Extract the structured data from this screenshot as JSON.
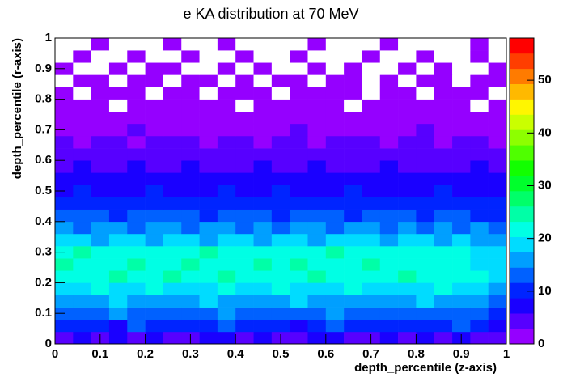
{
  "chart_data": {
    "type": "heatmap",
    "title": "e KA distribution at 70 MeV",
    "x_label": "depth_percentile (z-axis)",
    "y_label": "depth_percentile (r-axis)",
    "xlim": [
      0,
      1
    ],
    "ylim": [
      0,
      1
    ],
    "zlim": [
      0,
      58
    ],
    "xticks": [
      0,
      0.1,
      0.2,
      0.3,
      0.4,
      0.5,
      0.6,
      0.7,
      0.8,
      0.9,
      1
    ],
    "yticks": [
      0,
      0.1,
      0.2,
      0.3,
      0.4,
      0.5,
      0.6,
      0.7,
      0.8,
      0.9,
      1
    ],
    "zticks": [
      0,
      10,
      20,
      30,
      40,
      50
    ],
    "values": [
      [
        5,
        6,
        4,
        7,
        5,
        6,
        5,
        4,
        6,
        7,
        5,
        6,
        4,
        5,
        6,
        7,
        5,
        4,
        6,
        5,
        7,
        5,
        6,
        4,
        5
      ],
      [
        9,
        11,
        10,
        8,
        12,
        10,
        9,
        11,
        10,
        12,
        9,
        10,
        11,
        8,
        10,
        12,
        9,
        11,
        10,
        9,
        11,
        10,
        12,
        9,
        8
      ],
      [
        13,
        12,
        14,
        15,
        12,
        13,
        14,
        12,
        13,
        15,
        14,
        12,
        13,
        14,
        12,
        15,
        13,
        12,
        14,
        13,
        12,
        14,
        13,
        12,
        11
      ],
      [
        17,
        16,
        15,
        18,
        16,
        17,
        15,
        16,
        18,
        17,
        16,
        15,
        17,
        18,
        16,
        17,
        15,
        16,
        17,
        16,
        18,
        15,
        16,
        17,
        14
      ],
      [
        20,
        19,
        21,
        18,
        20,
        22,
        19,
        18,
        20,
        21,
        19,
        20,
        22,
        19,
        18,
        20,
        21,
        19,
        18,
        20,
        19,
        21,
        18,
        19,
        17
      ],
      [
        23,
        22,
        21,
        24,
        22,
        23,
        25,
        21,
        22,
        24,
        23,
        21,
        22,
        23,
        24,
        22,
        21,
        23,
        22,
        24,
        21,
        22,
        23,
        21,
        19
      ],
      [
        24,
        22,
        23,
        21,
        25,
        22,
        23,
        24,
        22,
        21,
        23,
        25,
        22,
        24,
        23,
        22,
        21,
        24,
        23,
        22,
        21,
        23,
        22,
        20,
        19
      ],
      [
        23,
        24,
        22,
        21,
        22,
        23,
        21,
        22,
        24,
        22,
        21,
        23,
        22,
        21,
        23,
        24,
        22,
        21,
        22,
        23,
        21,
        22,
        21,
        20,
        18
      ],
      [
        18,
        19,
        17,
        18,
        20,
        17,
        18,
        19,
        17,
        18,
        19,
        17,
        18,
        20,
        17,
        18,
        19,
        18,
        17,
        18,
        19,
        17,
        18,
        17,
        15
      ],
      [
        15,
        14,
        16,
        15,
        14,
        15,
        16,
        14,
        15,
        16,
        14,
        15,
        14,
        16,
        15,
        14,
        15,
        16,
        14,
        15,
        14,
        15,
        14,
        15,
        13
      ],
      [
        12,
        13,
        12,
        11,
        13,
        12,
        12,
        13,
        11,
        12,
        13,
        12,
        11,
        12,
        13,
        12,
        11,
        12,
        13,
        12,
        11,
        12,
        12,
        11,
        10
      ],
      [
        10,
        9,
        11,
        10,
        9,
        10,
        11,
        10,
        9,
        10,
        11,
        9,
        10,
        10,
        9,
        11,
        10,
        9,
        10,
        11,
        9,
        10,
        9,
        10,
        9
      ],
      [
        8,
        9,
        8,
        7,
        8,
        9,
        8,
        8,
        7,
        9,
        8,
        8,
        9,
        7,
        8,
        8,
        9,
        8,
        7,
        8,
        8,
        9,
        8,
        7,
        7
      ],
      [
        7,
        6,
        7,
        8,
        6,
        7,
        7,
        6,
        7,
        8,
        6,
        7,
        7,
        6,
        7,
        7,
        8,
        6,
        7,
        6,
        7,
        7,
        6,
        7,
        6
      ],
      [
        5,
        6,
        5,
        5,
        6,
        4,
        5,
        6,
        5,
        5,
        4,
        6,
        5,
        5,
        6,
        5,
        4,
        5,
        6,
        5,
        5,
        4,
        5,
        6,
        5
      ],
      [
        4,
        4,
        3,
        5,
        4,
        4,
        3,
        4,
        5,
        4,
        4,
        3,
        4,
        4,
        5,
        3,
        4,
        4,
        3,
        4,
        5,
        4,
        3,
        4,
        4
      ],
      [
        3,
        2,
        3,
        3,
        2,
        3,
        4,
        3,
        2,
        3,
        3,
        2,
        3,
        3,
        2,
        3,
        3,
        4,
        2,
        3,
        3,
        2,
        3,
        3,
        2
      ],
      [
        2,
        2,
        1,
        2,
        3,
        2,
        2,
        1,
        2,
        2,
        2,
        1,
        2,
        3,
        2,
        2,
        1,
        2,
        2,
        2,
        3,
        1,
        2,
        2,
        2
      ],
      [
        1,
        2,
        1,
        1,
        2,
        1,
        1,
        2,
        1,
        1,
        1,
        2,
        1,
        1,
        1,
        2,
        1,
        1,
        2,
        1,
        1,
        1,
        2,
        1,
        1
      ],
      [
        1,
        1,
        1,
        0,
        1,
        1,
        2,
        1,
        1,
        1,
        0,
        1,
        1,
        1,
        1,
        1,
        0,
        1,
        1,
        1,
        2,
        1,
        1,
        0,
        1
      ],
      [
        1,
        0,
        1,
        1,
        1,
        0,
        1,
        1,
        0,
        1,
        1,
        1,
        0,
        1,
        1,
        1,
        1,
        0,
        1,
        1,
        0,
        1,
        1,
        1,
        0
      ],
      [
        0,
        1,
        1,
        0,
        1,
        1,
        0,
        1,
        1,
        0,
        1,
        0,
        1,
        1,
        0,
        1,
        1,
        0,
        1,
        0,
        1,
        1,
        0,
        1,
        1
      ],
      [
        1,
        0,
        0,
        1,
        0,
        1,
        1,
        0,
        0,
        1,
        0,
        1,
        0,
        0,
        1,
        0,
        1,
        0,
        0,
        1,
        0,
        1,
        0,
        0,
        1
      ],
      [
        0,
        1,
        0,
        0,
        1,
        0,
        0,
        1,
        0,
        0,
        1,
        0,
        0,
        1,
        0,
        0,
        0,
        1,
        0,
        0,
        1,
        0,
        0,
        1,
        0
      ],
      [
        0,
        0,
        1,
        0,
        0,
        0,
        1,
        0,
        0,
        1,
        0,
        0,
        0,
        0,
        1,
        0,
        0,
        0,
        1,
        0,
        0,
        0,
        0,
        1,
        0
      ]
    ]
  }
}
